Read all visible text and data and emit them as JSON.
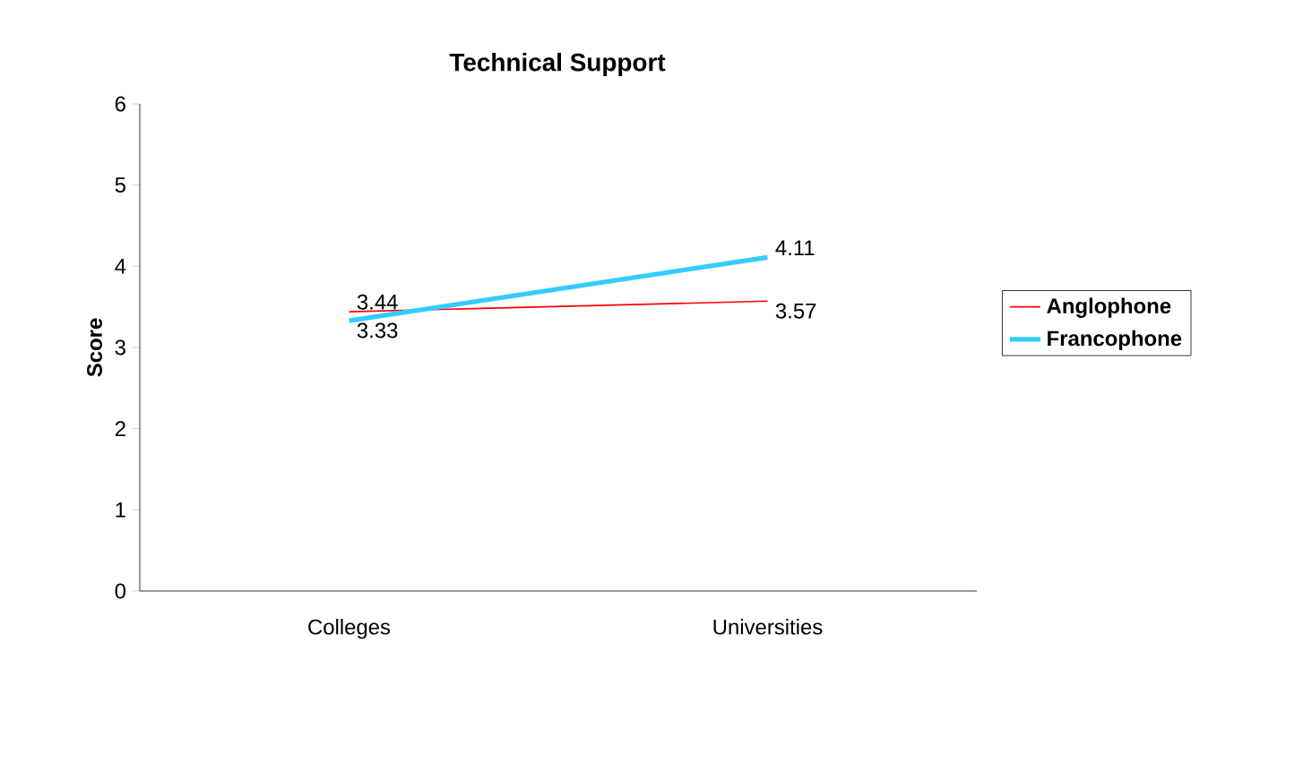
{
  "chart_data": {
    "type": "line",
    "title": "Technical Support",
    "ylabel": "Score",
    "categories": [
      "Colleges",
      "Universities"
    ],
    "series": [
      {
        "name": "Anglophone",
        "color": "#ff0000",
        "values": [
          3.44,
          3.57
        ],
        "value_labels": [
          "3.44",
          "3.57"
        ]
      },
      {
        "name": "Francophone",
        "color": "#33ccff",
        "values": [
          3.33,
          4.11
        ],
        "value_labels": [
          "3.33",
          "4.11"
        ]
      }
    ],
    "ylim": [
      0,
      6
    ],
    "yticks": [
      0,
      1,
      2,
      3,
      4,
      5,
      6
    ],
    "legend": "right",
    "marker": "none",
    "line_style": "solid"
  }
}
